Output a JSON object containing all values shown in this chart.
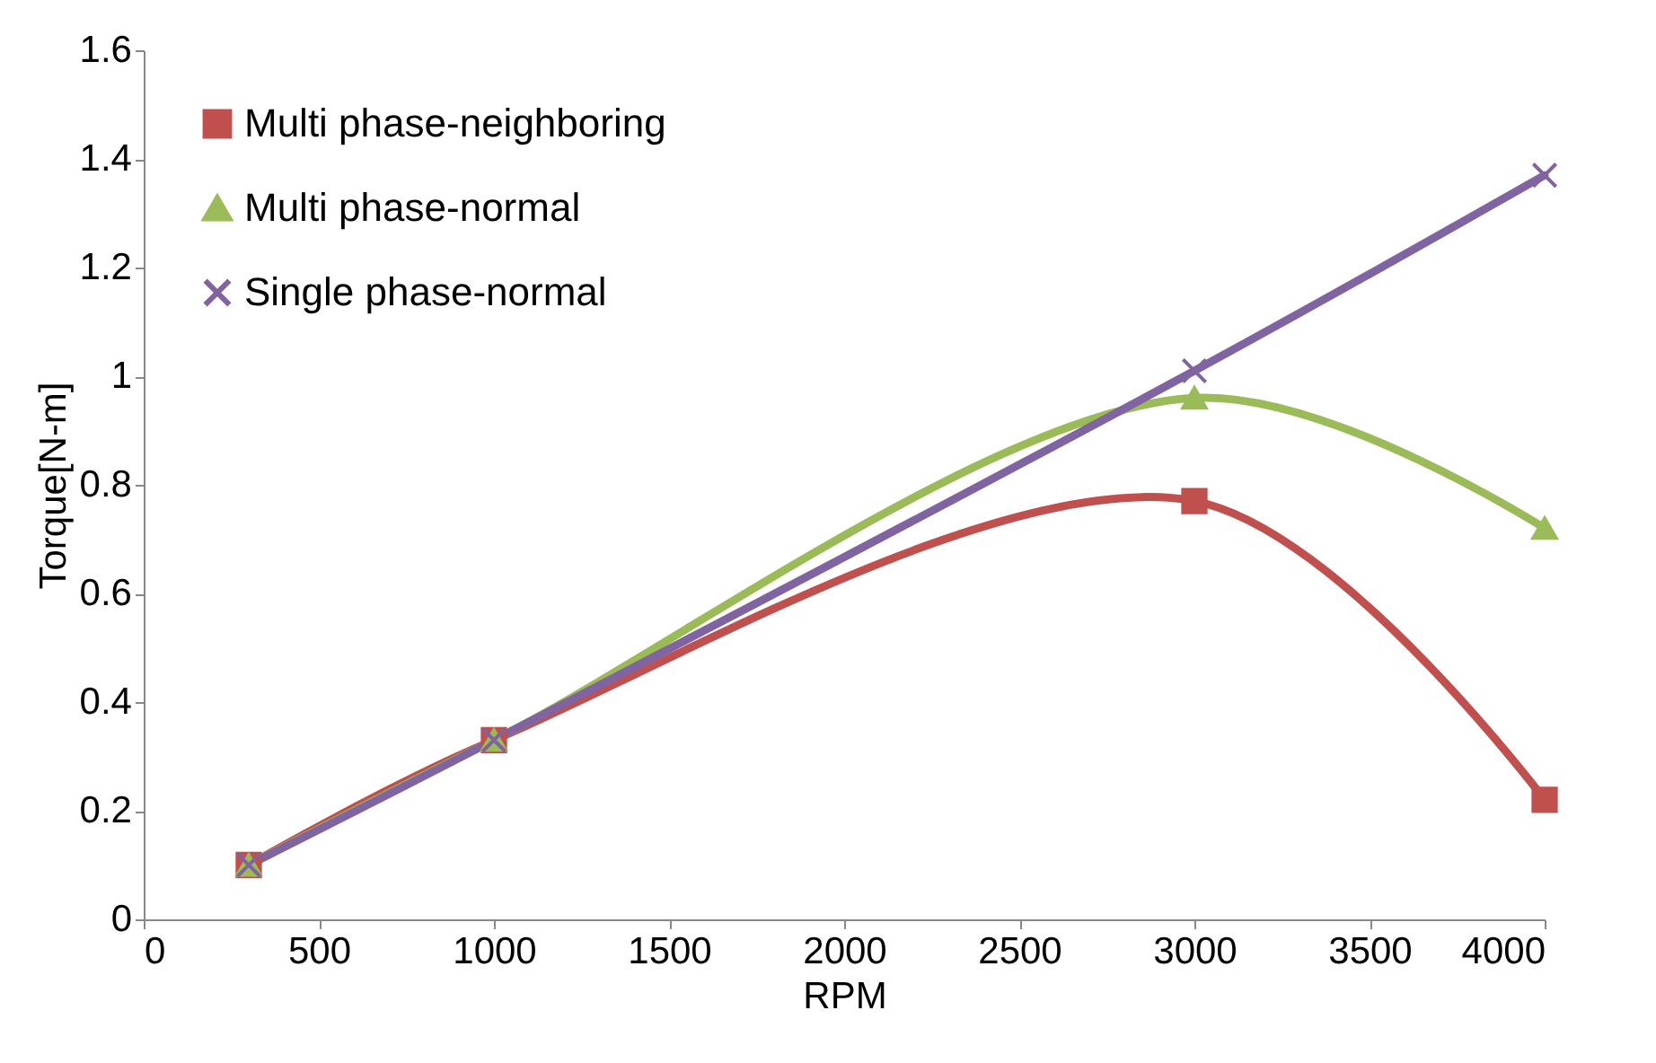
{
  "chart_data": {
    "type": "line",
    "xlabel": "RPM",
    "ylabel": "Torque[N-m]",
    "x": [
      300,
      1000,
      3000,
      4000
    ],
    "series": [
      {
        "name": "Multi phase-neighboring",
        "color": "#c0504d",
        "marker": "square",
        "values": [
          0.1,
          0.33,
          0.77,
          0.22
        ]
      },
      {
        "name": "Multi phase-normal",
        "color": "#9bbb59",
        "marker": "triangle",
        "values": [
          0.1,
          0.33,
          0.96,
          0.72
        ]
      },
      {
        "name": "Single phase-normal",
        "color": "#8064a2",
        "marker": "cross",
        "values": [
          0.1,
          0.33,
          1.01,
          1.37
        ]
      }
    ],
    "xlim": [
      0,
      4000
    ],
    "xticks": [
      0,
      500,
      1000,
      1500,
      2000,
      2500,
      3000,
      3500,
      4000
    ],
    "ylim": [
      0,
      1.6
    ],
    "yticks": [
      0,
      0.2,
      0.4,
      0.6,
      0.8,
      1,
      1.2,
      1.4,
      1.6
    ],
    "grid": false,
    "legend": "top left",
    "line_style": "solid"
  }
}
